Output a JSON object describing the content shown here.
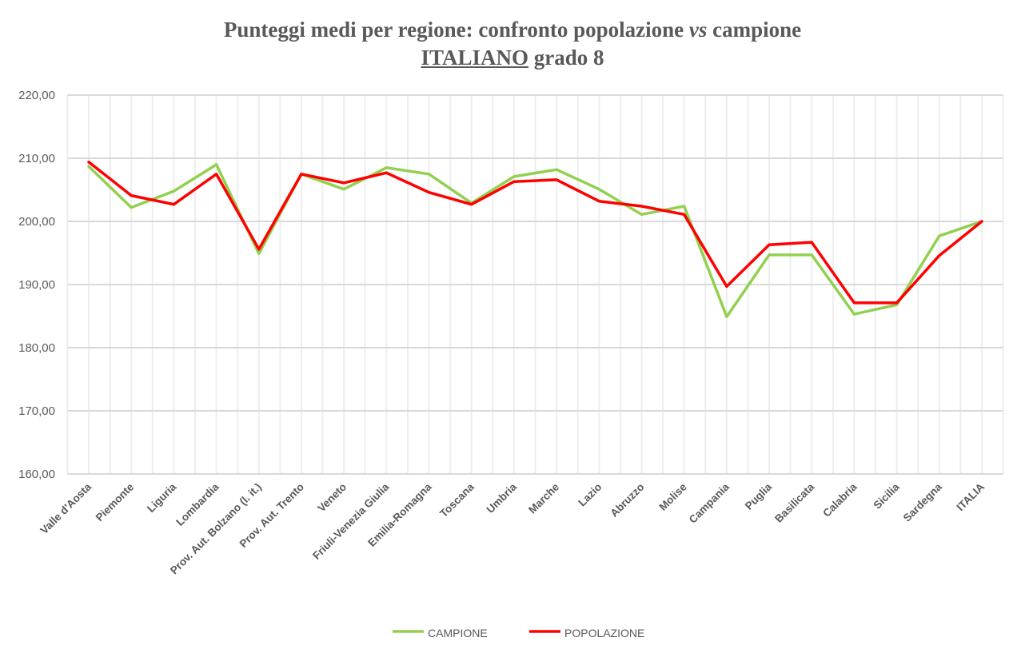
{
  "chart_data": {
    "type": "line",
    "title_line1_a": "Punteggi medi per regione: confronto popolazione ",
    "title_line1_italic": "vs",
    "title_line1_b": " campione",
    "title_line2_underlined": "ITALIANO",
    "title_line2_rest": " grado 8",
    "xlabel": "",
    "ylabel": "",
    "ylim": [
      160,
      220
    ],
    "yticks": [
      "160,00",
      "170,00",
      "180,00",
      "190,00",
      "200,00",
      "210,00",
      "220,00"
    ],
    "ytick_values": [
      160,
      170,
      180,
      190,
      200,
      210,
      220
    ],
    "grid": true,
    "legend_position": "bottom",
    "categories": [
      "Valle d'Aosta",
      "Piemonte",
      "Liguria",
      "Lombardia",
      "Prov. Aut. Bolzano (l. it.)",
      "Prov. Aut. Trento",
      "Veneto",
      "Friuli-Venezia Giulia",
      "Emilia-Romagna",
      "Toscana",
      "Umbria",
      "Marche",
      "Lazio",
      "Abruzzo",
      "Molise",
      "Campania",
      "Puglia",
      "Basilicata",
      "Calabria",
      "Sicilia",
      "Sardegna",
      "ITALIA"
    ],
    "series": [
      {
        "name": "CAMPIONE",
        "color": "#92d050",
        "values": [
          208.7,
          202.2,
          204.8,
          209.0,
          194.9,
          207.5,
          205.1,
          208.5,
          207.5,
          202.9,
          207.1,
          208.2,
          205.1,
          201.1,
          202.4,
          184.9,
          194.7,
          194.7,
          185.3,
          186.8,
          197.7,
          200.0
        ]
      },
      {
        "name": "POPOLAZIONE",
        "color": "#ff0000",
        "values": [
          209.4,
          204.1,
          202.7,
          207.5,
          195.6,
          207.5,
          206.1,
          207.7,
          204.6,
          202.7,
          206.3,
          206.6,
          203.2,
          202.4,
          201.1,
          189.7,
          196.3,
          196.7,
          187.1,
          187.1,
          194.6,
          200.0
        ]
      }
    ]
  }
}
